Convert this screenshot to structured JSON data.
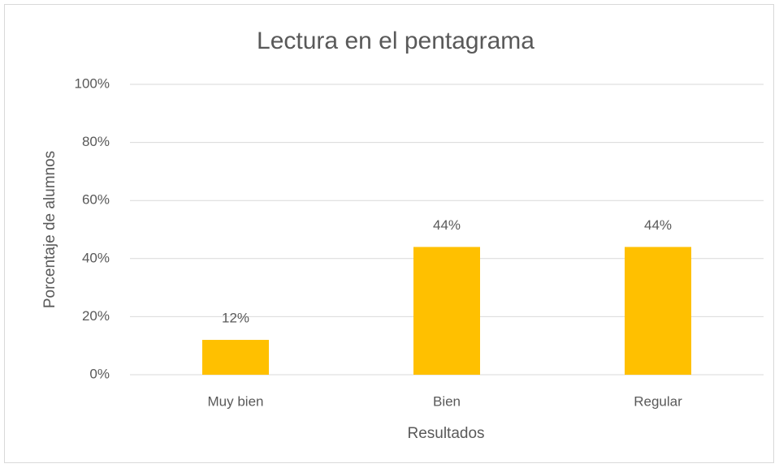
{
  "chart_data": {
    "type": "bar",
    "title": "Lectura en el pentagrama",
    "x_label": "Resultados",
    "y_label": "Porcentaje de alumnos",
    "categories": [
      "Muy bien",
      "Bien",
      "Regular"
    ],
    "values": [
      12,
      44,
      44
    ],
    "value_labels": [
      "12%",
      "44%",
      "44%"
    ],
    "color": "#ffc000",
    "ylim": [
      0,
      100
    ],
    "yticks": [
      {
        "value": 0,
        "label": "0%"
      },
      {
        "value": 20,
        "label": "20%"
      },
      {
        "value": 40,
        "label": "40%"
      },
      {
        "value": 60,
        "label": "60%"
      },
      {
        "value": 80,
        "label": "80%"
      },
      {
        "value": 100,
        "label": "100%"
      }
    ],
    "grid": true
  }
}
